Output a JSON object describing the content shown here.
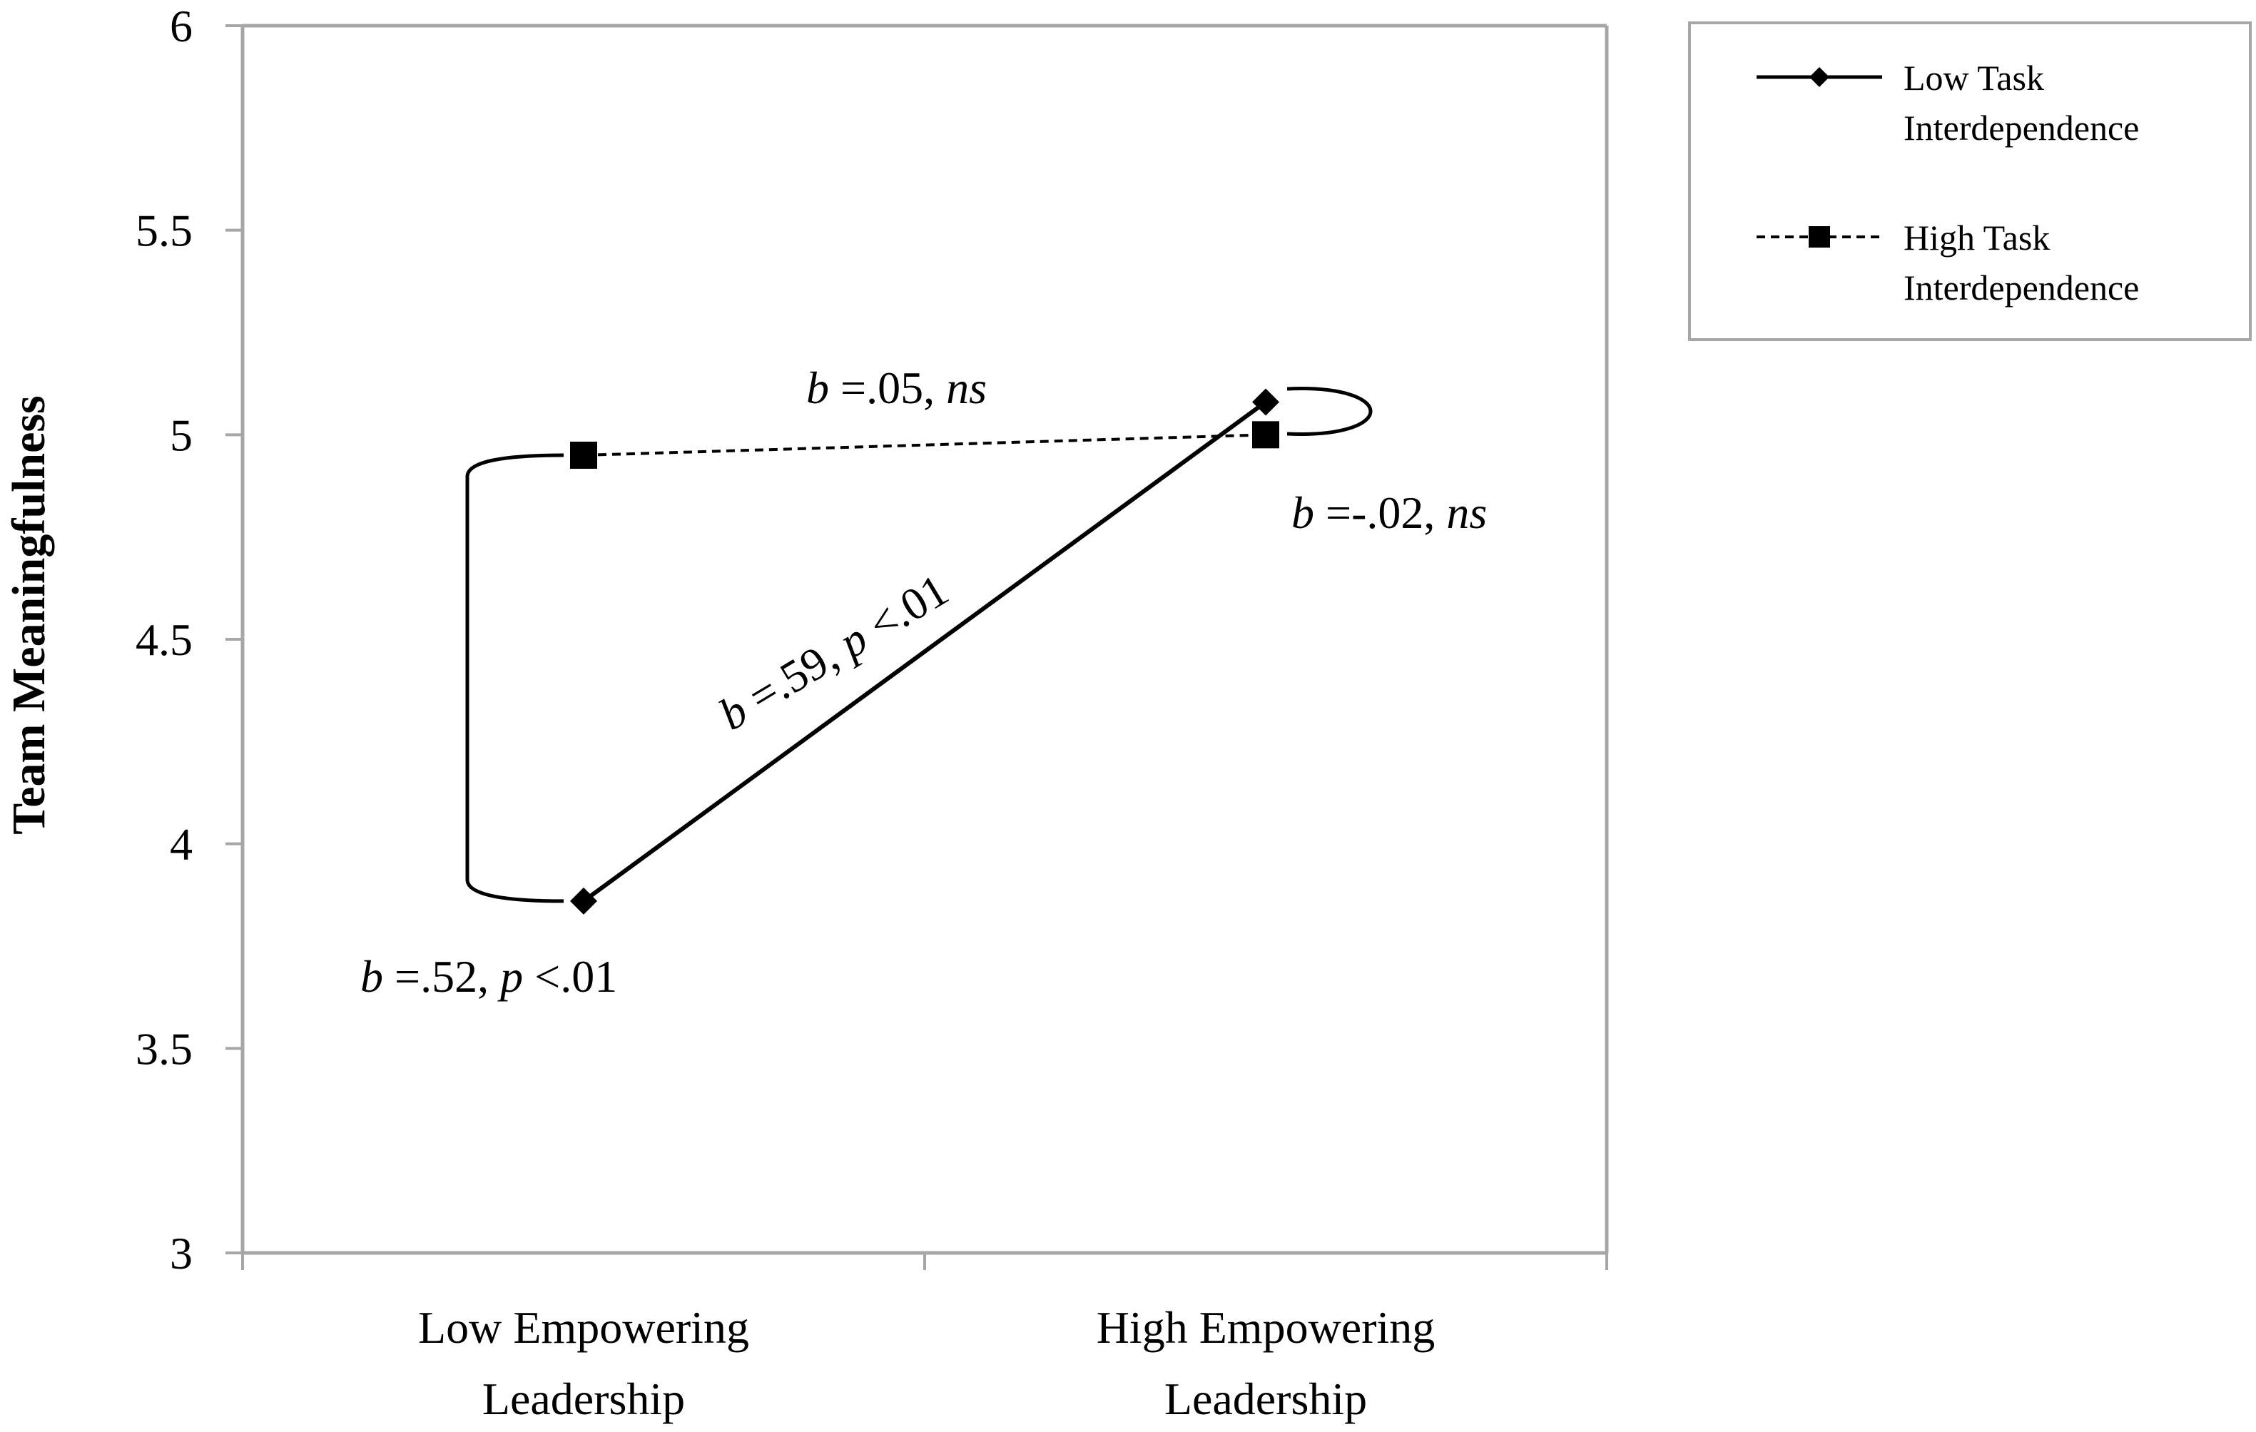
{
  "chart_data": {
    "type": "line",
    "title": "",
    "xlabel": "",
    "ylabel": "Team Meaningfulness",
    "categories": [
      [
        "Low Empowering",
        "Leadership"
      ],
      [
        "High Empowering",
        "Leadership"
      ]
    ],
    "ylim": [
      3,
      6
    ],
    "yticks": [
      "6",
      "5.5",
      "5",
      "4.5",
      "4",
      "3.5",
      "3"
    ],
    "ytick_values": [
      6,
      5.5,
      5,
      4.5,
      4,
      3.5,
      3
    ],
    "grid": false,
    "legend_placement": "top-right",
    "series": [
      {
        "name": [
          "Low Task",
          "Interdependence"
        ],
        "values": [
          3.86,
          5.08
        ],
        "line": "solid",
        "marker": "diamond"
      },
      {
        "name": [
          "High Task",
          "Interdependence"
        ],
        "values": [
          4.95,
          5.0
        ],
        "line": "dashed",
        "marker": "square"
      }
    ],
    "annotations": [
      {
        "parts": [
          {
            "t": "b",
            "i": true
          },
          {
            "t": " =.05, ",
            "i": false
          },
          {
            "t": "ns",
            "i": true
          }
        ]
      },
      {
        "parts": [
          {
            "t": "b",
            "i": true
          },
          {
            "t": " =-.02, ",
            "i": false
          },
          {
            "t": "ns",
            "i": true
          }
        ]
      },
      {
        "parts": [
          {
            "t": "b",
            "i": true
          },
          {
            "t": " =.59, ",
            "i": false
          },
          {
            "t": "p",
            "i": true
          },
          {
            "t": " <.01",
            "i": false
          }
        ]
      },
      {
        "parts": [
          {
            "t": "b",
            "i": true
          },
          {
            "t": " =.52, ",
            "i": false
          },
          {
            "t": "p",
            "i": true
          },
          {
            "t": " <.01",
            "i": false
          }
        ]
      }
    ]
  }
}
